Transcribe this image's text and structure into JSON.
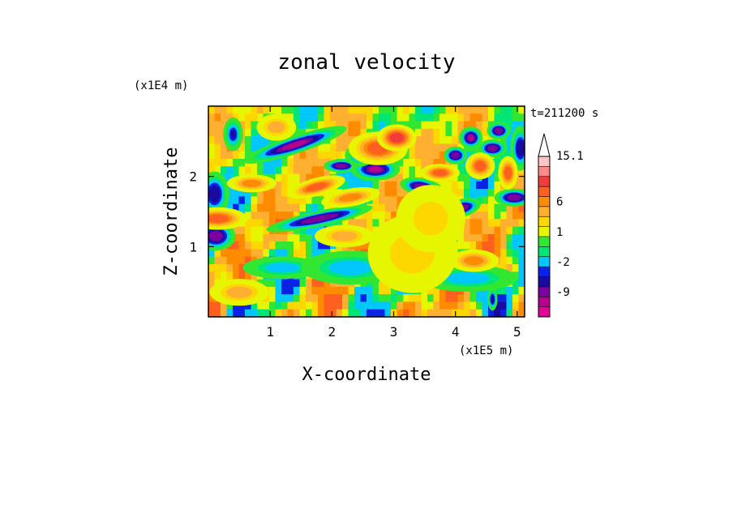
{
  "chart_data": {
    "type": "heatmap",
    "title": "zonal velocity",
    "xlabel": "X-coordinate",
    "ylabel": "Z-coordinate",
    "x_unit": "(x1E5 m)",
    "y_unit": "(x1E4 m)",
    "time_label": "t=211200 s",
    "xlim": [
      0.0,
      5.12
    ],
    "ylim": [
      0.0,
      3.0
    ],
    "x_ticks": [
      "1",
      "2",
      "3",
      "4",
      "5"
    ],
    "x_tick_values": [
      1,
      2,
      3,
      4,
      5
    ],
    "y_ticks": [
      "1",
      "2"
    ],
    "y_tick_values": [
      1,
      2
    ],
    "colorbar": {
      "labels": [
        "15.1",
        "6",
        "1",
        "-2",
        "-9"
      ],
      "label_values": [
        15.1,
        6,
        1,
        -2,
        -9
      ],
      "levels": [
        -16,
        -12,
        -9,
        -6,
        -4,
        -2,
        -1,
        0,
        1,
        2,
        4,
        6,
        9,
        12,
        15.1
      ],
      "colors": [
        "#e5009a",
        "#b8008f",
        "#7b00a0",
        "#1a0aa0",
        "#0a22e6",
        "#00c8ff",
        "#00e676",
        "#32e632",
        "#e6f500",
        "#ffd700",
        "#ffb030",
        "#ff8c00",
        "#ff6020",
        "#f03c3c",
        "#ff8a8a",
        "#ffc4c4"
      ],
      "extend": "max"
    },
    "features": [
      {
        "x": 1.4,
        "z": 2.45,
        "a": 0.55,
        "b": 0.08,
        "ang": -18,
        "v": -12
      },
      {
        "x": 2.15,
        "z": 2.15,
        "a": 0.18,
        "b": 0.06,
        "ang": 0,
        "v": -10
      },
      {
        "x": 2.7,
        "z": 2.1,
        "a": 0.25,
        "b": 0.1,
        "ang": 0,
        "v": -12
      },
      {
        "x": 3.45,
        "z": 1.85,
        "a": 0.22,
        "b": 0.08,
        "ang": 10,
        "v": -11
      },
      {
        "x": 4.0,
        "z": 2.3,
        "a": 0.12,
        "b": 0.08,
        "ang": 0,
        "v": -10
      },
      {
        "x": 4.25,
        "z": 2.55,
        "a": 0.12,
        "b": 0.1,
        "ang": 0,
        "v": -12
      },
      {
        "x": 4.6,
        "z": 2.4,
        "a": 0.15,
        "b": 0.08,
        "ang": 0,
        "v": -11
      },
      {
        "x": 4.7,
        "z": 2.65,
        "a": 0.12,
        "b": 0.08,
        "ang": 0,
        "v": -10
      },
      {
        "x": 4.95,
        "z": 1.7,
        "a": 0.2,
        "b": 0.08,
        "ang": 0,
        "v": -11
      },
      {
        "x": 4.1,
        "z": 1.55,
        "a": 0.2,
        "b": 0.08,
        "ang": -15,
        "v": -10
      },
      {
        "x": 1.8,
        "z": 1.4,
        "a": 0.55,
        "b": 0.07,
        "ang": -12,
        "v": -10
      },
      {
        "x": 0.12,
        "z": 1.15,
        "a": 0.2,
        "b": 0.13,
        "ang": 0,
        "v": -10
      },
      {
        "x": 0.1,
        "z": 1.75,
        "a": 0.15,
        "b": 0.2,
        "ang": 0,
        "v": -7
      },
      {
        "x": 0.4,
        "z": 2.6,
        "a": 0.1,
        "b": 0.15,
        "ang": 0,
        "v": -6
      },
      {
        "x": 5.05,
        "z": 2.4,
        "a": 0.1,
        "b": 0.2,
        "ang": 0,
        "v": -8
      },
      {
        "x": 4.6,
        "z": 0.25,
        "a": 0.05,
        "b": 0.1,
        "ang": 0,
        "v": -8
      },
      {
        "x": 2.45,
        "z": 2.3,
        "a": 0.15,
        "b": 0.1,
        "ang": 0,
        "v": -6
      },
      {
        "x": 1.2,
        "z": 0.7,
        "a": 0.4,
        "b": 0.1,
        "ang": 0,
        "v": -3
      },
      {
        "x": 2.3,
        "z": 0.7,
        "a": 0.5,
        "b": 0.15,
        "ang": 0,
        "v": -3
      },
      {
        "x": 4.2,
        "z": 0.55,
        "a": 0.5,
        "b": 0.12,
        "ang": 0,
        "v": -2.5
      },
      {
        "x": 2.75,
        "z": 2.4,
        "a": 0.3,
        "b": 0.15,
        "ang": 0,
        "v": 9
      },
      {
        "x": 3.05,
        "z": 2.55,
        "a": 0.2,
        "b": 0.12,
        "ang": 0,
        "v": 10
      },
      {
        "x": 1.75,
        "z": 1.85,
        "a": 0.3,
        "b": 0.08,
        "ang": -15,
        "v": 8
      },
      {
        "x": 2.3,
        "z": 1.7,
        "a": 0.3,
        "b": 0.08,
        "ang": -10,
        "v": 6
      },
      {
        "x": 3.75,
        "z": 2.05,
        "a": 0.2,
        "b": 0.08,
        "ang": 0,
        "v": 8
      },
      {
        "x": 4.4,
        "z": 2.15,
        "a": 0.15,
        "b": 0.12,
        "ang": 0,
        "v": 7
      },
      {
        "x": 4.85,
        "z": 2.05,
        "a": 0.1,
        "b": 0.15,
        "ang": 0,
        "v": 7
      },
      {
        "x": 0.15,
        "z": 1.4,
        "a": 0.3,
        "b": 0.1,
        "ang": 0,
        "v": 7
      },
      {
        "x": 0.7,
        "z": 1.9,
        "a": 0.25,
        "b": 0.08,
        "ang": 0,
        "v": 5
      },
      {
        "x": 2.2,
        "z": 1.15,
        "a": 0.3,
        "b": 0.1,
        "ang": 0,
        "v": 4
      },
      {
        "x": 0.5,
        "z": 0.35,
        "a": 0.3,
        "b": 0.12,
        "ang": 0,
        "v": 4
      },
      {
        "x": 4.3,
        "z": 0.8,
        "a": 0.25,
        "b": 0.1,
        "ang": 0,
        "v": 5
      },
      {
        "x": 1.1,
        "z": 2.7,
        "a": 0.2,
        "b": 0.12,
        "ang": 0,
        "v": 4
      },
      {
        "x": 3.3,
        "z": 0.9,
        "a": 0.45,
        "b": 0.35,
        "ang": 0,
        "v": 1.5
      },
      {
        "x": 3.6,
        "z": 1.4,
        "a": 0.35,
        "b": 0.3,
        "ang": 0,
        "v": 1.5
      }
    ]
  }
}
